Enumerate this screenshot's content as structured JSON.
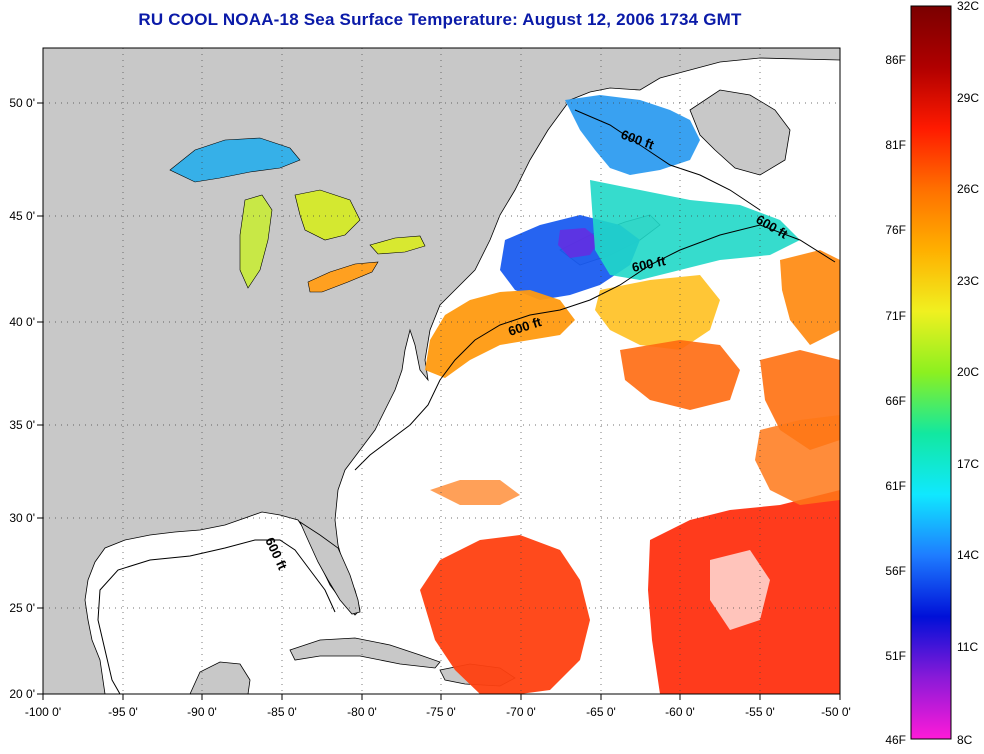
{
  "title": "RU COOL  NOAA-18  Sea Surface Temperature:  August 12, 2006 1734 GMT",
  "map": {
    "lon_range": [
      -100,
      -50
    ],
    "lat_range": [
      20,
      52.5
    ],
    "lon_ticks": [
      "-100 0'",
      "-95 0'",
      "-90 0'",
      "-85 0'",
      "-80 0'",
      "-75 0'",
      "-70 0'",
      "-65 0'",
      "-60 0'",
      "-55 0'",
      "-50 0'"
    ],
    "lat_ticks": [
      "20 0'",
      "25 0'",
      "30 0'",
      "35 0'",
      "40 0'",
      "45 0'",
      "50 0'"
    ],
    "contour_label": "600 ft",
    "land_color": "#c8c8c8",
    "cloud_color": "#ffffff"
  },
  "colorbar": {
    "celsius_labels": [
      "32C",
      "29C",
      "26C",
      "23C",
      "20C",
      "17C",
      "14C",
      "11C",
      "8C"
    ],
    "fahrenheit_labels": [
      "86F",
      "81F",
      "76F",
      "71F",
      "66F",
      "61F",
      "56F",
      "51F",
      "46F"
    ],
    "stops": [
      "#ff1ad8",
      "#8a1ad8",
      "#0010d8",
      "#1e7cff",
      "#10e8ff",
      "#12e8a0",
      "#8cf020",
      "#f0f020",
      "#ffb000",
      "#ff7000",
      "#ff1a00",
      "#b00000",
      "#7a0000"
    ]
  }
}
